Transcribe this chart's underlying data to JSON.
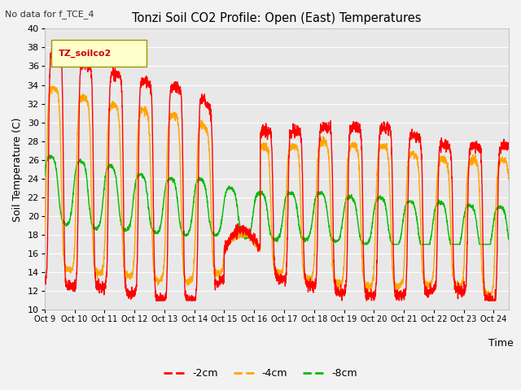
{
  "title": "Tonzi Soil CO2 Profile: Open (East) Temperatures",
  "top_left_text": "No data for f_TCE_4",
  "ylabel": "Soil Temperature (C)",
  "xlabel": "Time",
  "ylim": [
    10,
    40
  ],
  "line_colors": {
    "-2cm": "#ff0000",
    "-4cm": "#ffa500",
    "-8cm": "#00bb00"
  },
  "legend_label": "TZ_soilco2",
  "legend_bg": "#ffffcc",
  "xtick_labels": [
    "Oct 9",
    "Oct 10",
    "Oct 11",
    "Oct 12",
    "Oct 13",
    "Oct 14",
    "Oct 15",
    "Oct 16",
    "Oct 17",
    "Oct 18",
    "Oct 19",
    "Oct 20",
    "Oct 21",
    "Oct 22",
    "Oct 23",
    "Oct 24"
  ],
  "yticks": [
    10,
    12,
    14,
    16,
    18,
    20,
    22,
    24,
    26,
    28,
    30,
    32,
    34,
    36,
    38,
    40
  ],
  "figsize": [
    6.4,
    4.8
  ],
  "dpi": 100
}
